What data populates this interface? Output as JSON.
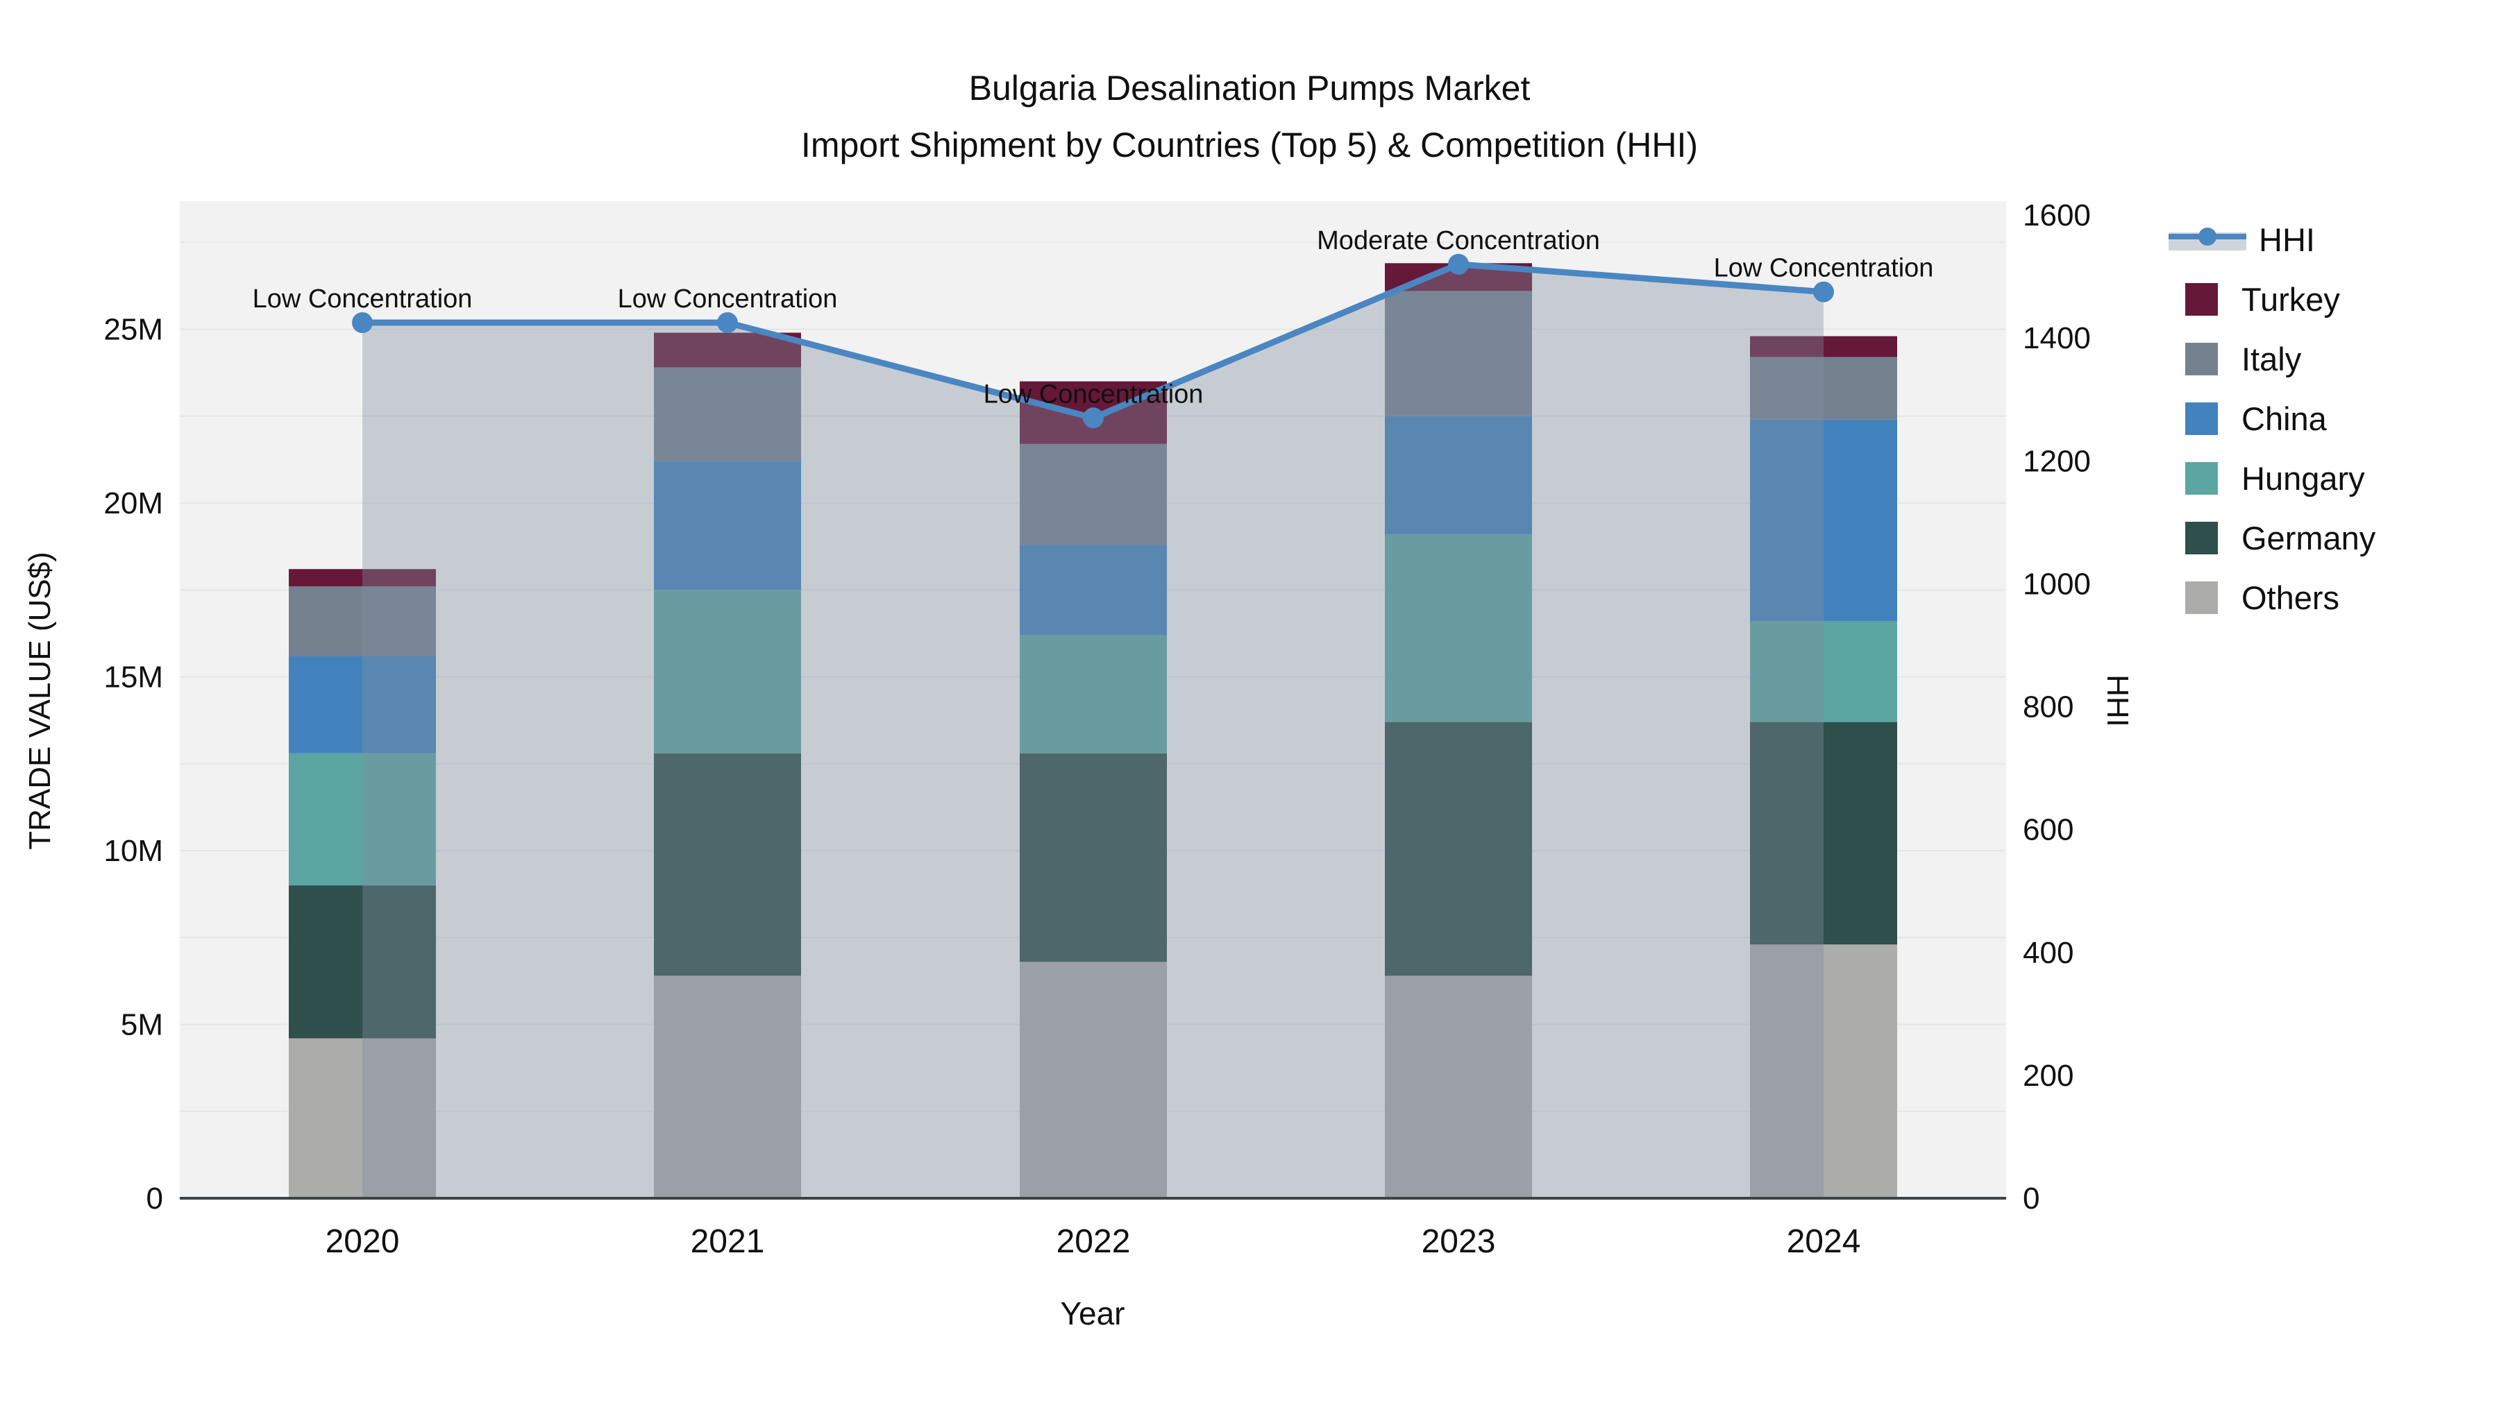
{
  "title": {
    "line1": "Bulgaria Desalination Pumps Market",
    "line2": "Import Shipment by Countries (Top 5) & Competition (HHI)"
  },
  "chart_data": {
    "type": "combo-stacked-bar-line",
    "xlabel": "Year",
    "ylabel_left": "TRADE VALUE (US$)",
    "ylabel_right": "HHI",
    "categories": [
      "2020",
      "2021",
      "2022",
      "2023",
      "2024"
    ],
    "units": "millions USD",
    "ylim_left": [
      0,
      28.7
    ],
    "ylim_right": [
      0,
      1600
    ],
    "grid": true,
    "series": [
      {
        "key": "others",
        "name": "Others",
        "color": "#acacaa",
        "values": [
          4.6,
          6.4,
          6.8,
          6.4,
          7.3
        ]
      },
      {
        "key": "germany",
        "name": "Germany",
        "color": "#2e4f4b",
        "values": [
          4.4,
          6.4,
          6.0,
          7.3,
          6.4
        ]
      },
      {
        "key": "hungary",
        "name": "Hungary",
        "color": "#5ba5a2",
        "values": [
          3.8,
          4.7,
          3.4,
          5.4,
          2.9
        ]
      },
      {
        "key": "china",
        "name": "China",
        "color": "#4283bd",
        "values": [
          2.8,
          3.7,
          2.6,
          3.4,
          5.8
        ]
      },
      {
        "key": "italy",
        "name": "Italy",
        "color": "#74818f",
        "values": [
          2.0,
          2.7,
          2.9,
          3.6,
          1.8
        ]
      },
      {
        "key": "turkey",
        "name": "Turkey",
        "color": "#661838",
        "values": [
          0.5,
          1.0,
          1.8,
          0.8,
          0.6
        ]
      }
    ],
    "bar_totals": [
      18.1,
      24.9,
      23.5,
      26.9,
      24.8
    ],
    "hhi": {
      "name": "HHI",
      "values": [
        1425,
        1425,
        1270,
        1520,
        1475
      ],
      "line_color": "#4a86c2",
      "area_color": "rgba(130,143,160,0.38)"
    },
    "annotations": [
      {
        "year": "2020",
        "text": "Low Concentration"
      },
      {
        "year": "2021",
        "text": "Low Concentration"
      },
      {
        "year": "2022",
        "text": "Low Concentration"
      },
      {
        "year": "2023",
        "text": "Moderate Concentration"
      },
      {
        "year": "2024",
        "text": "Low Concentration"
      }
    ],
    "yaxis_left_ticks": [
      {
        "v": 0,
        "label": "0"
      },
      {
        "v": 5,
        "label": "5M"
      },
      {
        "v": 10,
        "label": "10M"
      },
      {
        "v": 15,
        "label": "15M"
      },
      {
        "v": 20,
        "label": "20M"
      },
      {
        "v": 25,
        "label": "25M"
      }
    ],
    "yaxis_right_ticks": [
      {
        "v": 0,
        "label": "0"
      },
      {
        "v": 200,
        "label": "200"
      },
      {
        "v": 400,
        "label": "400"
      },
      {
        "v": 600,
        "label": "600"
      },
      {
        "v": 800,
        "label": "800"
      },
      {
        "v": 1000,
        "label": "1000"
      },
      {
        "v": 1200,
        "label": "1200"
      },
      {
        "v": 1400,
        "label": "1400"
      },
      {
        "v": 1600,
        "label": "1600"
      }
    ],
    "legend_order": [
      "HHI",
      "Turkey",
      "Italy",
      "China",
      "Hungary",
      "Germany",
      "Others"
    ],
    "colors": {
      "plot_background": "#f2f2f2",
      "gridline": "#e4e6e8",
      "axis_line": "#3f4347",
      "text": "#101010"
    }
  }
}
